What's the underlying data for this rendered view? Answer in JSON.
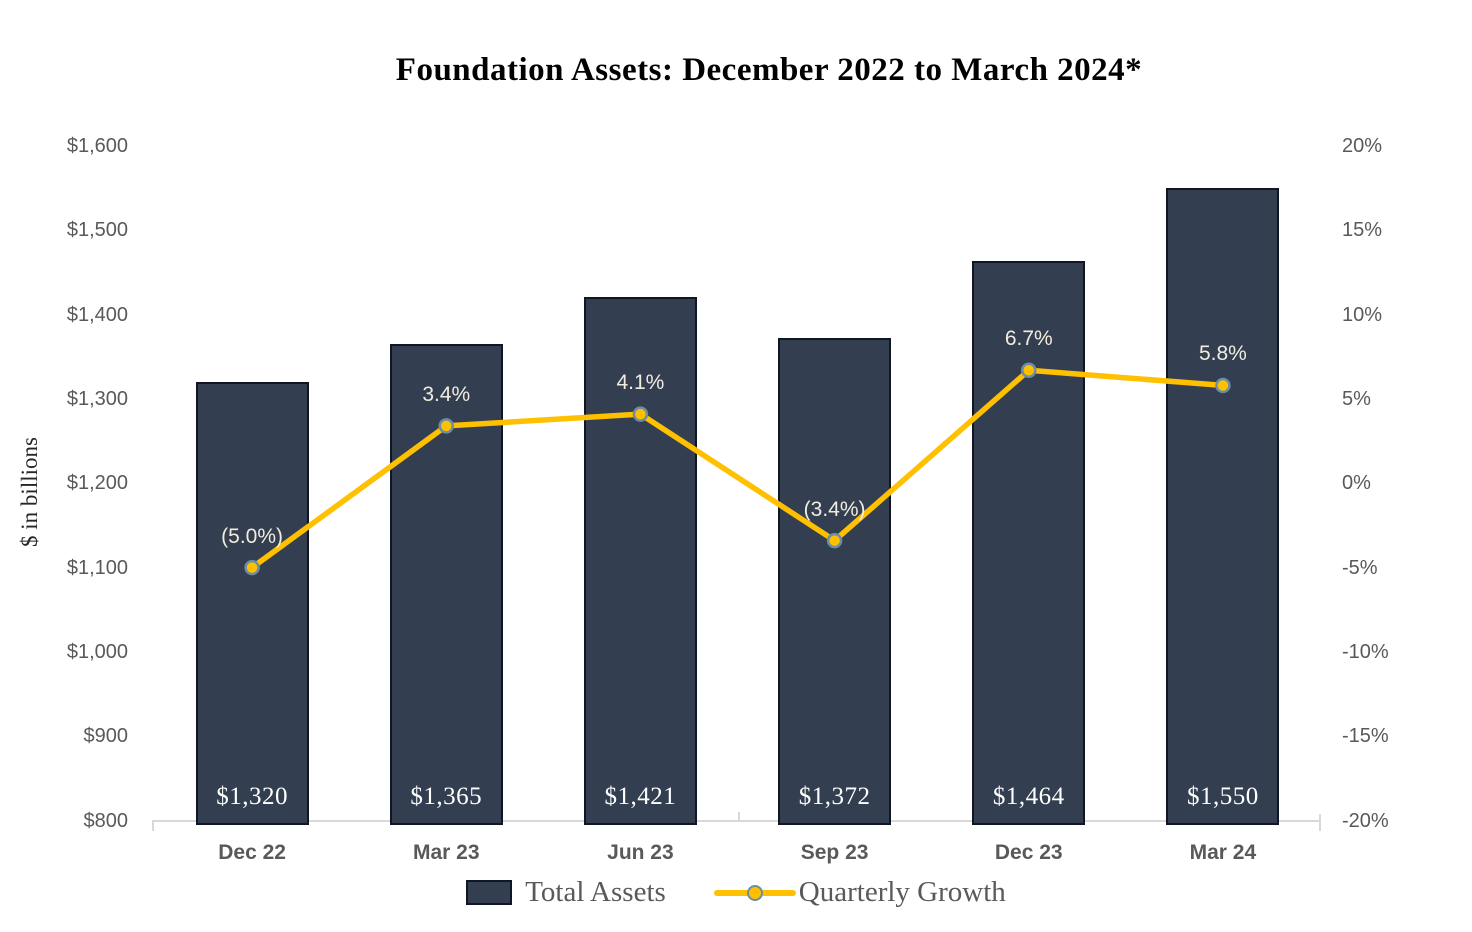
{
  "colors": {
    "bar_fill": "#333F50",
    "bar_border": "#10striking1623",
    "bar_border_fixed": "#101623",
    "line": "#FFC000",
    "marker_fill": "#FFC000",
    "marker_stroke": "#6C8EA4",
    "axis_text": "#595959",
    "axis_line": "#D9D9D9",
    "bar_label_text": "#FFFFFF",
    "line_label_text": "#F1ECDF",
    "title_text": "#000000"
  },
  "chart_data": {
    "type": "bar+line combo",
    "title": "Foundation Assets: December 2022 to March 2024*",
    "ylabel_left": "$ in billions",
    "grid": false,
    "legend_position": "bottom",
    "categories": [
      "Dec 22",
      "Mar 23",
      "Jun 23",
      "Sep 23",
      "Dec 23",
      "Mar 24"
    ],
    "series": [
      {
        "name": "Total Assets",
        "type": "bar",
        "axis": "left",
        "values": [
          1320,
          1365,
          1421,
          1372,
          1464,
          1550
        ],
        "labels": [
          "$1,320",
          "$1,365",
          "$1,421",
          "$1,372",
          "$1,464",
          "$1,550"
        ]
      },
      {
        "name": "Quarterly Growth",
        "type": "line",
        "axis": "right",
        "values": [
          -5.0,
          3.4,
          4.1,
          -3.4,
          6.7,
          5.8
        ],
        "labels": [
          "(5.0%)",
          "3.4%",
          "4.1%",
          "(3.4%)",
          "6.7%",
          "5.8%"
        ]
      }
    ],
    "left_axis": {
      "min": 800,
      "max": 1600,
      "step": 100,
      "tick_labels": [
        "$800",
        "$900",
        "$1,000",
        "$1,100",
        "$1,200",
        "$1,300",
        "$1,400",
        "$1,500",
        "$1,600"
      ]
    },
    "right_axis": {
      "min": -20,
      "max": 20,
      "step": 5,
      "tick_labels": [
        "-20%",
        "-15%",
        "-10%",
        "-5%",
        "0%",
        "5%",
        "10%",
        "15%",
        "20%"
      ]
    }
  }
}
